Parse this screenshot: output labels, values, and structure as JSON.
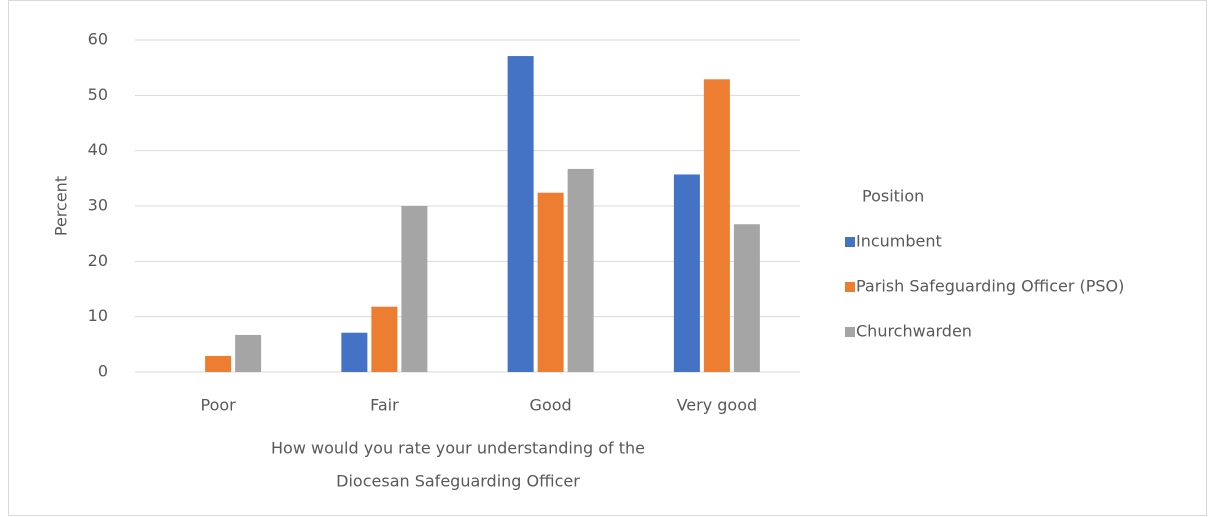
{
  "chart_data": {
    "type": "bar",
    "y_label": "Percent",
    "x_label": [
      "How would you rate your understanding of the",
      "Diocesan Safeguarding Officer"
    ],
    "legend_title": "Position",
    "categories": [
      "Poor",
      "Fair",
      "Good",
      "Very good"
    ],
    "series": [
      {
        "name": "Incumbent",
        "color": "#4472c4",
        "values": [
          0,
          7.1,
          57.1,
          35.7
        ]
      },
      {
        "name": "Parish Safeguarding Officer (PSO)",
        "color": "#ed7d31",
        "values": [
          2.9,
          11.8,
          32.4,
          52.9
        ]
      },
      {
        "name": "Churchwarden",
        "color": "#a5a5a5",
        "values": [
          6.7,
          30,
          36.7,
          26.7
        ]
      }
    ],
    "ylim": [
      0,
      60
    ],
    "yticks": [
      0,
      10,
      20,
      30,
      40,
      50,
      60
    ],
    "grid": true,
    "legend": "right"
  }
}
